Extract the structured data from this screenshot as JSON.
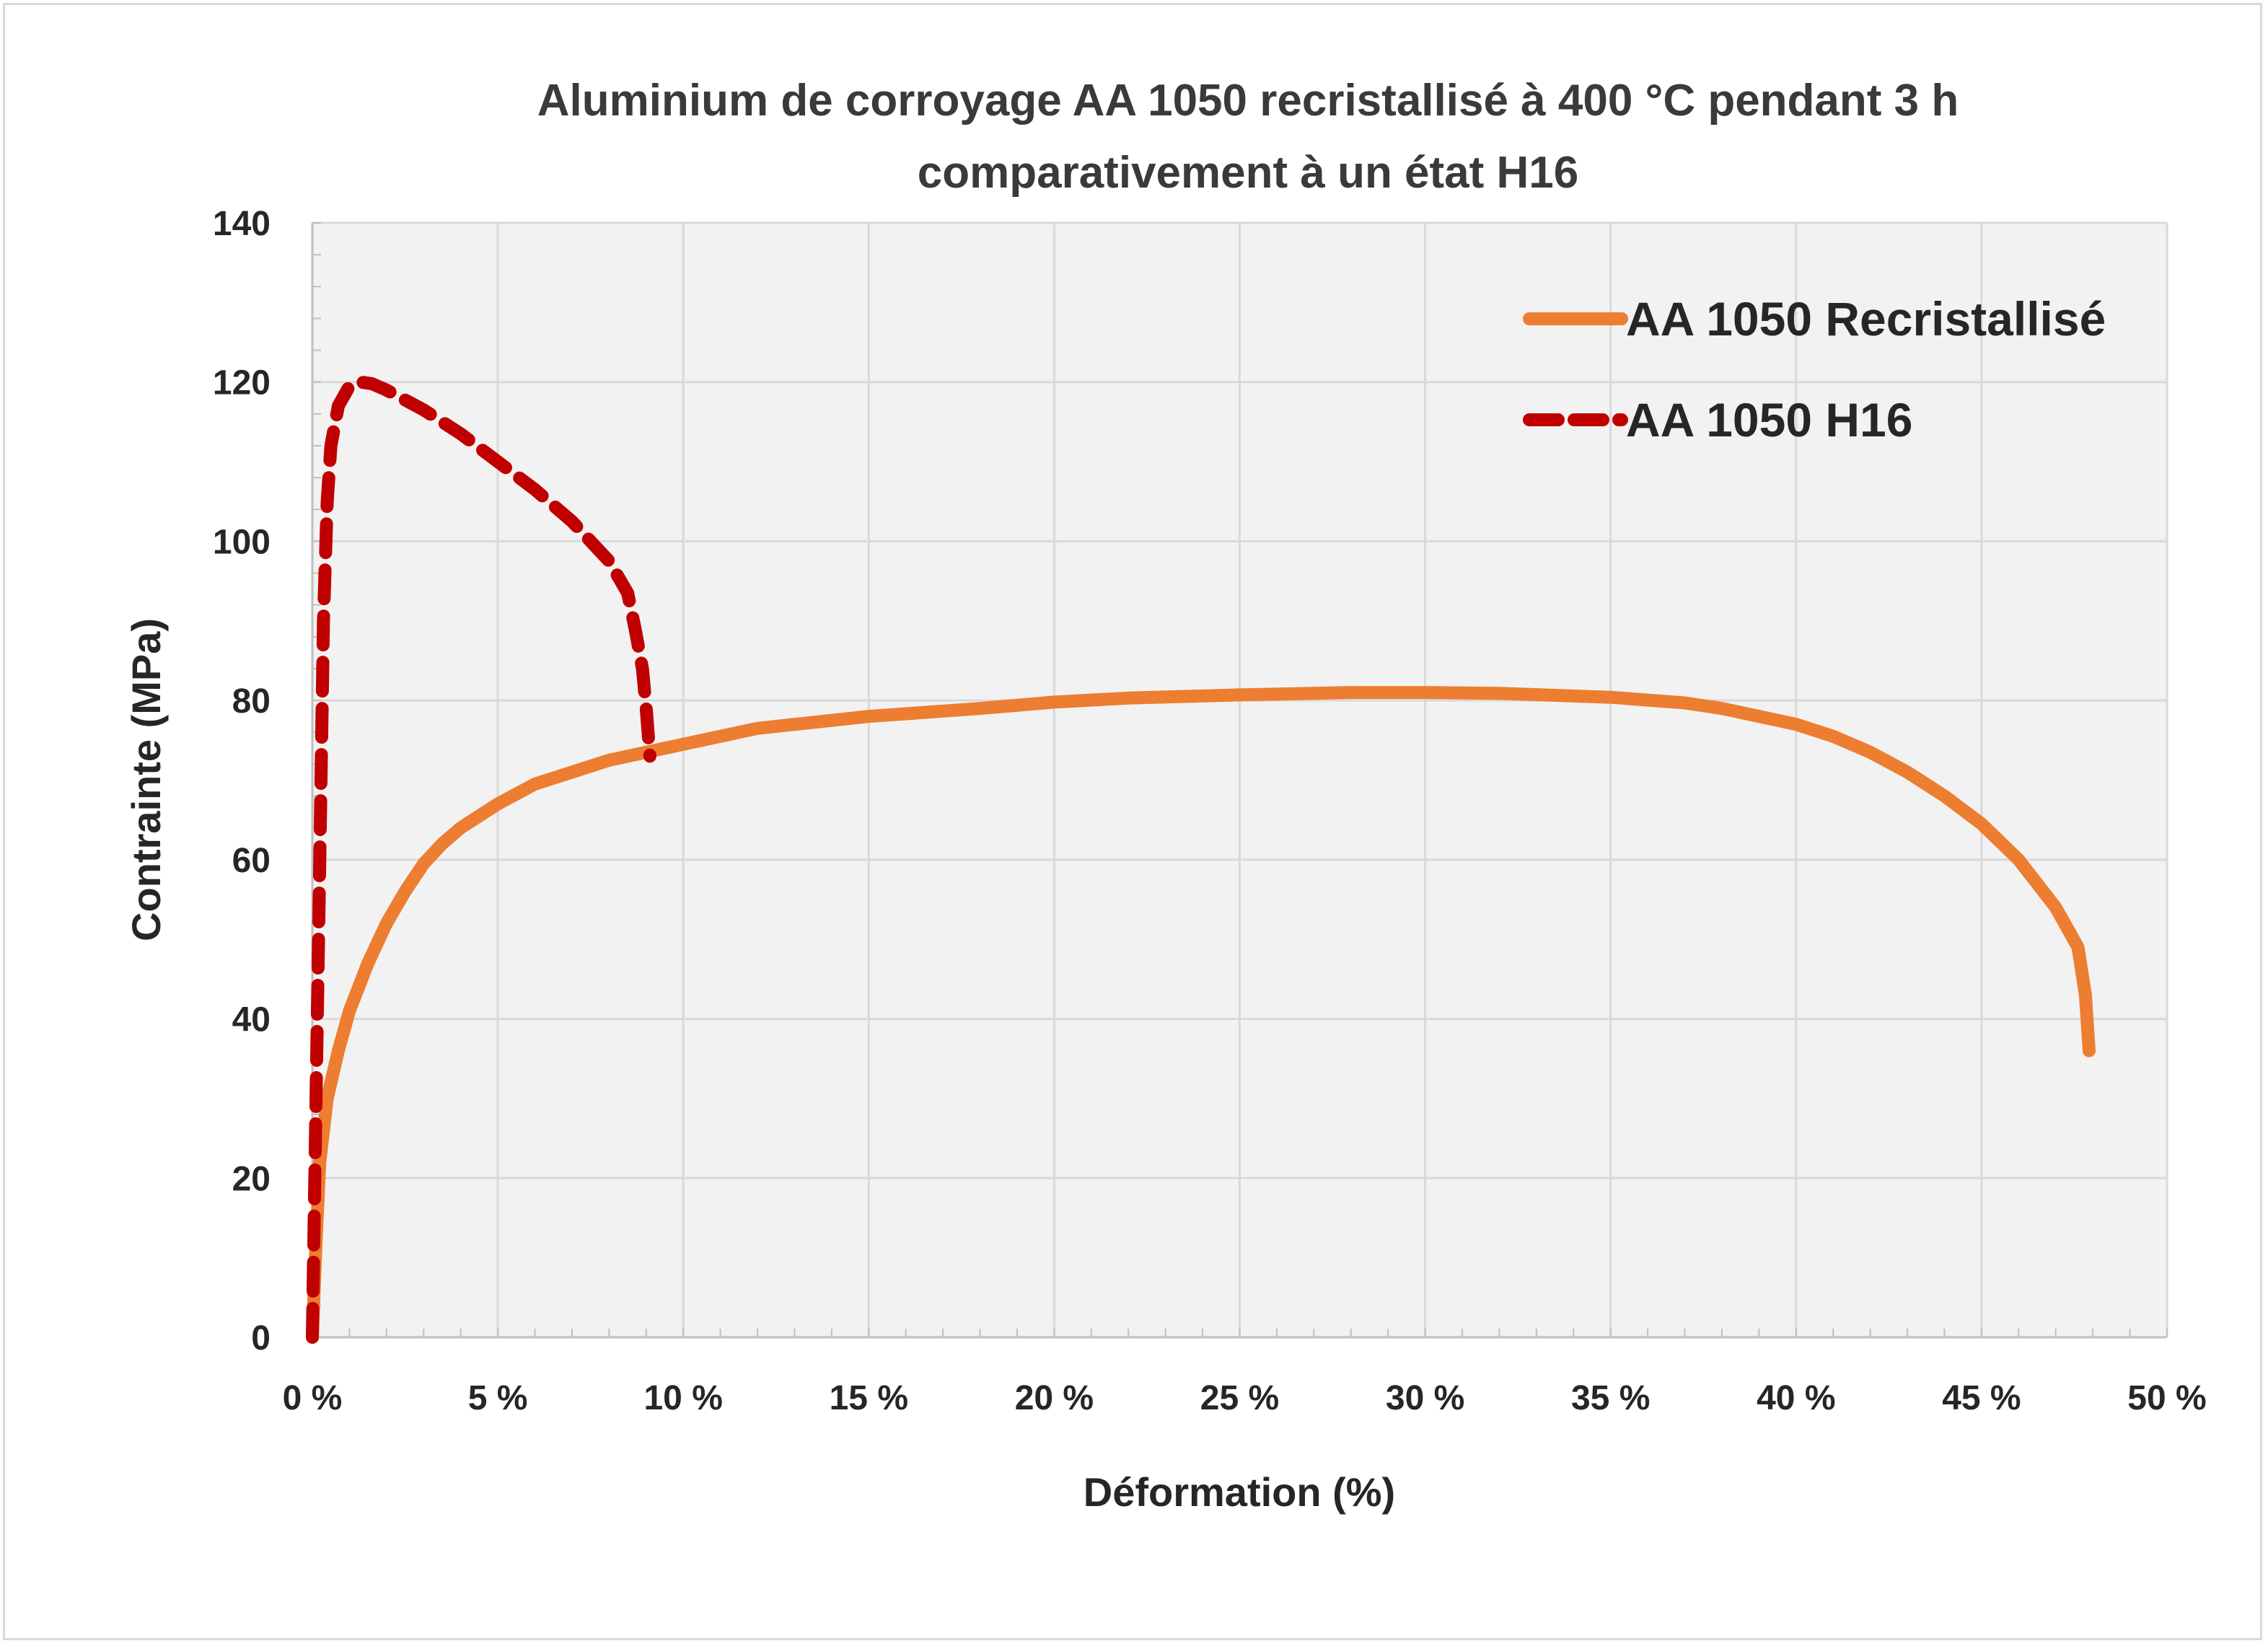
{
  "chart_data": {
    "type": "line",
    "title_line1": "Aluminium de corroyage AA 1050 recristallisé à 400 °C pendant 3 h",
    "title_line2": "comparativement à un état H16",
    "xlabel": "Déformation (%)",
    "ylabel": "Contrainte (MPa)",
    "xlim": [
      0,
      50
    ],
    "ylim": [
      0,
      140
    ],
    "x_ticks": [
      0,
      5,
      10,
      15,
      20,
      25,
      30,
      35,
      40,
      45,
      50
    ],
    "x_tick_labels": [
      "0 %",
      "5 %",
      "10 %",
      "15 %",
      "20 %",
      "25 %",
      "30 %",
      "35 %",
      "40 %",
      "45 %",
      "50 %"
    ],
    "y_ticks": [
      0,
      20,
      40,
      60,
      80,
      100,
      120,
      140
    ],
    "y_tick_labels": [
      "0",
      "20",
      "40",
      "60",
      "80",
      "100",
      "120",
      "140"
    ],
    "grid": true,
    "legend_position": "top-right",
    "series": [
      {
        "name": "AA 1050 Recristallisé",
        "color": "#ED7D31",
        "style": "solid",
        "x": [
          0,
          0.1,
          0.2,
          0.4,
          0.7,
          1,
          1.5,
          2,
          2.5,
          3,
          3.5,
          4,
          5,
          6,
          7,
          8,
          9,
          10,
          12,
          15,
          18,
          20,
          22,
          25,
          28,
          30,
          32,
          35,
          37,
          38,
          39,
          40,
          41,
          42,
          43,
          44,
          45,
          46,
          47,
          47.6,
          47.8,
          47.9
        ],
        "y": [
          0,
          12,
          22,
          30,
          36,
          41,
          47,
          52,
          56,
          59.5,
          62,
          64,
          67,
          69.5,
          71,
          72.5,
          73.5,
          74.5,
          76.5,
          78,
          79,
          79.8,
          80.3,
          80.7,
          81,
          81,
          80.9,
          80.4,
          79.7,
          79,
          78,
          77,
          75.5,
          73.5,
          71,
          68,
          64.5,
          60,
          54,
          49,
          43,
          36
        ]
      },
      {
        "name": "AA 1050 H16",
        "color": "#C00000",
        "style": "dashed",
        "x": [
          0,
          0.1,
          0.2,
          0.3,
          0.4,
          0.5,
          0.7,
          1,
          1.3,
          1.6,
          2,
          3,
          4,
          5,
          6,
          7,
          7.5,
          8,
          8.5,
          8.7,
          8.9,
          9,
          9.1
        ],
        "y": [
          0,
          30,
          60,
          90,
          105,
          112,
          117,
          119.5,
          120,
          119.8,
          119,
          116.5,
          113.5,
          110,
          106.5,
          102.5,
          100,
          97.5,
          93.5,
          89,
          84,
          79,
          73
        ]
      }
    ]
  }
}
